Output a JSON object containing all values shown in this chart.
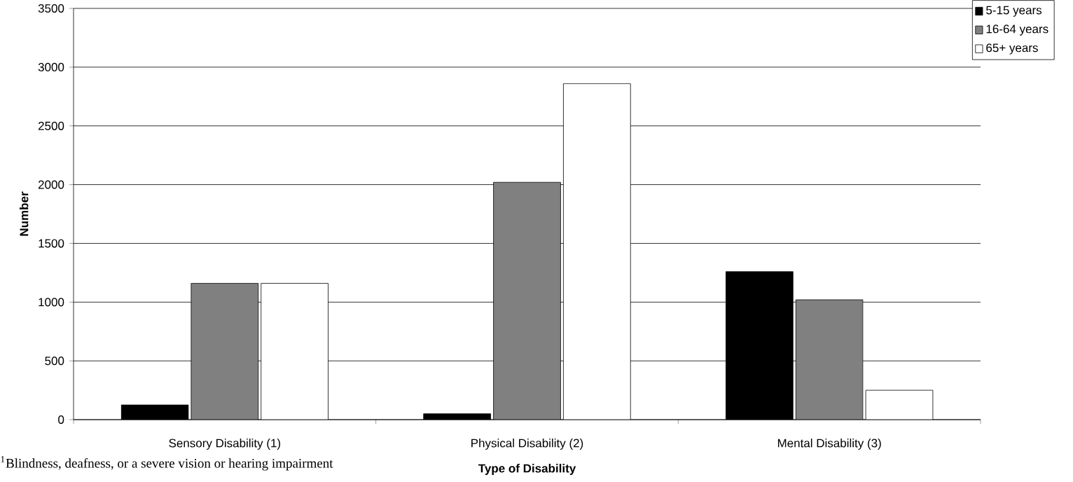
{
  "chart_data": {
    "type": "bar",
    "xlabel": "Type of Disability",
    "ylabel": "Number",
    "categories": [
      "Sensory Disability (1)",
      "Physical Disability (2)",
      "Mental Disability (3)"
    ],
    "series": [
      {
        "name": "5-15 years",
        "color": "#000000",
        "values": [
          125,
          50,
          1260
        ]
      },
      {
        "name": "16-64 years",
        "color": "#808080",
        "values": [
          1160,
          2020,
          1020
        ]
      },
      {
        "name": "65+ years",
        "color": "#ffffff",
        "values": [
          1160,
          2860,
          250
        ]
      }
    ],
    "ylim": [
      0,
      3500
    ],
    "yticks": [
      0,
      500,
      1000,
      1500,
      2000,
      2500,
      3000,
      3500
    ],
    "grid": "y",
    "legend": "top right",
    "annotations": [
      "$^{1}$Blindness, deafness, or a severe vision or hearing impairment"
    ]
  }
}
